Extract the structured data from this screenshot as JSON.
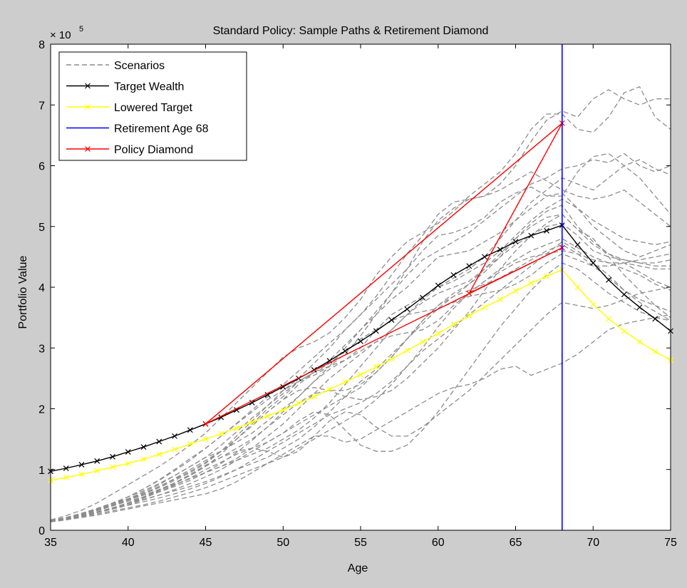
{
  "chart_data": {
    "type": "line",
    "title": "Standard Policy: Sample Paths & Retirement Diamond",
    "xlabel": "Age",
    "ylabel": "Portfolio Value",
    "y_multiplier": "× 10",
    "y_multiplier_exponent": "5",
    "xlim": [
      35,
      75
    ],
    "ylim": [
      0,
      8
    ],
    "xticks": [
      "35",
      "40",
      "45",
      "50",
      "55",
      "60",
      "65",
      "70",
      "75"
    ],
    "yticks": [
      "0",
      "1",
      "2",
      "3",
      "4",
      "5",
      "6",
      "7",
      "8"
    ],
    "retirement_age": 68,
    "legend_position": "top-left",
    "legend": [
      {
        "label": "Scenarios",
        "color": "#8c8c8c",
        "style": "dashed",
        "marker": ""
      },
      {
        "label": "Target Wealth",
        "color": "#000000",
        "style": "solid",
        "marker": "x"
      },
      {
        "label": "Lowered Target",
        "color": "#ffff00",
        "style": "solid",
        "marker": "x"
      },
      {
        "label": "Retirement Age 68",
        "color": "#0000ff",
        "style": "solid",
        "marker": ""
      },
      {
        "label": "Policy Diamond",
        "color": "#ff0000",
        "style": "solid",
        "marker": "x"
      }
    ],
    "target_wealth": {
      "name": "Target Wealth",
      "x": [
        35,
        36,
        37,
        38,
        39,
        40,
        41,
        42,
        43,
        44,
        45,
        46,
        47,
        48,
        49,
        50,
        51,
        52,
        53,
        54,
        55,
        56,
        57,
        58,
        59,
        60,
        61,
        62,
        63,
        64,
        65,
        66,
        67,
        68,
        69,
        70,
        71,
        72,
        73,
        74,
        75
      ],
      "y": [
        0.97,
        1.02,
        1.08,
        1.14,
        1.21,
        1.29,
        1.37,
        1.46,
        1.55,
        1.65,
        1.75,
        1.86,
        1.98,
        2.1,
        2.23,
        2.36,
        2.5,
        2.64,
        2.79,
        2.95,
        3.11,
        3.28,
        3.46,
        3.64,
        3.83,
        4.03,
        4.2,
        4.35,
        4.5,
        4.62,
        4.75,
        4.85,
        4.93,
        5.02,
        4.7,
        4.4,
        4.12,
        3.88,
        3.67,
        3.48,
        3.28
      ]
    },
    "lowered_target": {
      "name": "Lowered Target",
      "x": [
        35,
        36,
        37,
        38,
        39,
        40,
        41,
        42,
        43,
        44,
        45,
        46,
        47,
        48,
        49,
        50,
        51,
        52,
        53,
        54,
        55,
        56,
        57,
        58,
        59,
        60,
        61,
        62,
        63,
        64,
        65,
        66,
        67,
        68,
        69,
        70,
        71,
        72,
        73,
        74,
        75
      ],
      "y": [
        0.82,
        0.87,
        0.92,
        0.98,
        1.04,
        1.1,
        1.17,
        1.25,
        1.33,
        1.42,
        1.5,
        1.59,
        1.68,
        1.78,
        1.88,
        1.98,
        2.09,
        2.2,
        2.32,
        2.44,
        2.56,
        2.69,
        2.82,
        2.96,
        3.1,
        3.24,
        3.39,
        3.53,
        3.67,
        3.8,
        3.94,
        4.07,
        4.18,
        4.29,
        4.0,
        3.72,
        3.48,
        3.28,
        3.1,
        2.94,
        2.8
      ]
    },
    "policy_diamond": {
      "name": "Policy Diamond",
      "x": [
        45,
        68,
        62,
        68,
        45
      ],
      "y": [
        1.75,
        6.7,
        3.9,
        4.65,
        1.75
      ]
    },
    "scenarios_x": [
      35,
      36,
      37,
      38,
      39,
      40,
      41,
      42,
      43,
      44,
      45,
      46,
      47,
      48,
      49,
      50,
      51,
      52,
      53,
      54,
      55,
      56,
      57,
      58,
      59,
      60,
      61,
      62,
      63,
      64,
      65,
      66,
      67,
      68,
      69,
      70,
      71,
      72,
      73,
      74,
      75
    ],
    "scenarios": [
      [
        0.15,
        0.2,
        0.27,
        0.35,
        0.44,
        0.55,
        0.68,
        0.83,
        1.0,
        1.18,
        1.35,
        1.55,
        1.76,
        1.98,
        2.2,
        2.4,
        2.62,
        2.85,
        3.08,
        3.3,
        3.55,
        3.85,
        4.2,
        4.55,
        4.85,
        5.2,
        5.4,
        5.45,
        5.5,
        5.7,
        6.0,
        6.4,
        6.75,
        6.9,
        6.8,
        7.1,
        7.25,
        7.1,
        7.0,
        7.1,
        7.1
      ],
      [
        0.17,
        0.24,
        0.33,
        0.45,
        0.6,
        0.75,
        0.9,
        1.05,
        1.22,
        1.4,
        1.6,
        1.85,
        2.1,
        2.35,
        2.6,
        2.85,
        3.0,
        3.1,
        3.25,
        3.5,
        3.8,
        4.2,
        4.5,
        4.75,
        4.9,
        5.05,
        5.25,
        5.5,
        5.7,
        5.9,
        6.2,
        6.6,
        6.85,
        6.85,
        6.6,
        6.55,
        6.8,
        7.2,
        7.3,
        6.8,
        6.6
      ],
      [
        0.14,
        0.19,
        0.25,
        0.33,
        0.42,
        0.52,
        0.63,
        0.75,
        0.9,
        1.05,
        1.2,
        1.4,
        1.62,
        1.85,
        2.05,
        2.3,
        2.5,
        2.75,
        3.0,
        3.3,
        3.55,
        3.8,
        4.05,
        4.3,
        4.6,
        4.85,
        4.9,
        5.0,
        5.15,
        5.4,
        5.55,
        5.65,
        5.5,
        5.5,
        5.9,
        6.15,
        6.2,
        6.0,
        5.8,
        5.5,
        5.2
      ],
      [
        0.16,
        0.21,
        0.28,
        0.36,
        0.45,
        0.55,
        0.65,
        0.77,
        0.9,
        1.05,
        1.2,
        1.3,
        1.45,
        1.6,
        1.8,
        2.0,
        2.2,
        2.45,
        2.7,
        3.0,
        3.3,
        3.6,
        3.9,
        4.2,
        4.45,
        4.6,
        4.75,
        4.9,
        5.1,
        5.3,
        5.5,
        5.7,
        5.8,
        5.95,
        6.0,
        6.1,
        6.05,
        6.2,
        6.0,
        5.9,
        6.0
      ],
      [
        0.15,
        0.2,
        0.26,
        0.33,
        0.41,
        0.5,
        0.6,
        0.72,
        0.85,
        1.0,
        1.15,
        1.3,
        1.5,
        1.72,
        1.95,
        2.15,
        2.4,
        2.6,
        2.8,
        3.05,
        3.3,
        3.55,
        3.8,
        4.0,
        4.25,
        4.5,
        4.55,
        4.6,
        4.75,
        4.9,
        5.1,
        5.3,
        5.5,
        5.55,
        5.3,
        5.0,
        4.8,
        4.6,
        4.5,
        4.6,
        4.7
      ],
      [
        0.15,
        0.2,
        0.27,
        0.35,
        0.44,
        0.52,
        0.6,
        0.7,
        0.82,
        0.95,
        1.1,
        1.3,
        1.55,
        1.8,
        2.05,
        2.25,
        2.45,
        2.55,
        2.7,
        2.9,
        3.2,
        3.55,
        3.9,
        4.3,
        4.75,
        5.1,
        5.3,
        5.45,
        5.5,
        5.6,
        5.75,
        5.9,
        5.75,
        5.6,
        5.5,
        5.45,
        5.5,
        5.6,
        5.4,
        5.2,
        5.0
      ],
      [
        0.15,
        0.2,
        0.26,
        0.33,
        0.41,
        0.5,
        0.58,
        0.67,
        0.78,
        0.9,
        1.05,
        1.25,
        1.5,
        1.75,
        2.0,
        2.2,
        2.45,
        2.6,
        2.7,
        2.8,
        3.0,
        3.3,
        3.55,
        3.7,
        3.85,
        4.0,
        4.15,
        4.3,
        4.5,
        4.8,
        5.1,
        5.4,
        5.6,
        5.8,
        5.7,
        5.6,
        5.8,
        6.0,
        6.1,
        5.95,
        5.85
      ],
      [
        0.14,
        0.19,
        0.25,
        0.32,
        0.4,
        0.48,
        0.55,
        0.63,
        0.72,
        0.82,
        0.95,
        1.1,
        1.28,
        1.48,
        1.7,
        1.95,
        2.2,
        2.45,
        2.65,
        2.8,
        2.95,
        3.1,
        3.3,
        3.55,
        3.8,
        4.0,
        4.1,
        4.25,
        4.4,
        4.6,
        4.85,
        5.1,
        5.3,
        5.45,
        5.3,
        5.1,
        4.95,
        4.8,
        4.75,
        4.7,
        4.75
      ],
      [
        0.16,
        0.21,
        0.27,
        0.34,
        0.42,
        0.5,
        0.58,
        0.66,
        0.75,
        0.85,
        0.95,
        1.05,
        1.15,
        1.25,
        1.35,
        1.5,
        1.65,
        1.85,
        2.1,
        2.4,
        2.7,
        3.0,
        3.3,
        3.55,
        3.75,
        3.9,
        4.0,
        4.1,
        4.3,
        4.5,
        4.7,
        4.85,
        5.0,
        5.05,
        4.85,
        4.6,
        4.5,
        4.45,
        4.4,
        4.4,
        4.45
      ],
      [
        0.14,
        0.18,
        0.23,
        0.29,
        0.35,
        0.42,
        0.5,
        0.58,
        0.67,
        0.77,
        0.88,
        1.0,
        1.15,
        1.3,
        1.45,
        1.6,
        1.75,
        1.9,
        2.05,
        2.2,
        2.35,
        2.6,
        2.85,
        3.15,
        3.45,
        3.7,
        3.9,
        4.05,
        4.25,
        4.5,
        4.8,
        5.05,
        5.25,
        5.35,
        5.0,
        4.75,
        4.55,
        4.45,
        4.4,
        4.35,
        4.35
      ],
      [
        0.15,
        0.19,
        0.24,
        0.3,
        0.37,
        0.44,
        0.51,
        0.58,
        0.65,
        0.72,
        0.8,
        0.9,
        1.0,
        1.1,
        1.2,
        1.35,
        1.5,
        1.7,
        1.95,
        2.2,
        2.45,
        2.65,
        2.9,
        3.15,
        3.4,
        3.65,
        3.85,
        4.05,
        4.3,
        4.55,
        4.8,
        5.0,
        5.15,
        5.2,
        4.95,
        4.8,
        4.5,
        4.2,
        3.95,
        3.7,
        3.5
      ],
      [
        0.16,
        0.21,
        0.27,
        0.34,
        0.42,
        0.5,
        0.58,
        0.66,
        0.75,
        0.85,
        0.95,
        1.05,
        1.18,
        1.35,
        1.55,
        1.75,
        2.0,
        2.25,
        2.5,
        2.7,
        2.9,
        3.1,
        3.2,
        3.25,
        3.3,
        3.45,
        3.7,
        3.9,
        4.1,
        4.3,
        4.45,
        4.6,
        4.7,
        4.8,
        4.65,
        4.5,
        4.4,
        4.3,
        4.2,
        4.05,
        3.95
      ],
      [
        0.14,
        0.18,
        0.23,
        0.29,
        0.35,
        0.41,
        0.47,
        0.53,
        0.6,
        0.68,
        0.77,
        0.88,
        1.0,
        1.15,
        1.3,
        1.45,
        1.6,
        1.75,
        1.9,
        2.0,
        2.1,
        2.25,
        2.45,
        2.7,
        2.95,
        3.15,
        3.35,
        3.55,
        3.75,
        3.95,
        4.15,
        4.35,
        4.55,
        4.75,
        4.6,
        4.4,
        4.2,
        3.95,
        3.75,
        3.6,
        3.45
      ],
      [
        0.15,
        0.2,
        0.27,
        0.35,
        0.44,
        0.55,
        0.68,
        0.82,
        0.98,
        1.15,
        1.35,
        1.55,
        1.75,
        1.95,
        2.15,
        2.3,
        2.45,
        2.6,
        2.75,
        2.95,
        3.15,
        3.3,
        3.45,
        3.55,
        3.6,
        3.65,
        3.75,
        3.85,
        3.9,
        3.95,
        4.05,
        4.2,
        4.4,
        4.55,
        4.45,
        4.35,
        4.35,
        4.4,
        4.45,
        4.5,
        4.55
      ],
      [
        0.14,
        0.18,
        0.22,
        0.27,
        0.32,
        0.37,
        0.42,
        0.48,
        0.55,
        0.62,
        0.7,
        0.8,
        0.9,
        1.0,
        1.1,
        1.2,
        1.35,
        1.5,
        1.65,
        1.8,
        1.95,
        2.15,
        2.4,
        2.7,
        3.0,
        3.35,
        3.65,
        3.9,
        4.1,
        4.25,
        4.4,
        4.5,
        4.55,
        4.6,
        4.55,
        4.45,
        4.4,
        4.4,
        4.35,
        4.3,
        4.3
      ],
      [
        0.15,
        0.19,
        0.24,
        0.3,
        0.37,
        0.45,
        0.54,
        0.65,
        0.77,
        0.9,
        1.05,
        1.2,
        1.35,
        1.5,
        1.7,
        1.9,
        2.1,
        2.25,
        2.3,
        2.3,
        2.4,
        2.6,
        2.85,
        3.15,
        3.45,
        3.7,
        3.85,
        3.95,
        4.05,
        4.15,
        4.3,
        4.45,
        4.6,
        4.7,
        4.55,
        4.35,
        4.15,
        3.95,
        3.8,
        3.7,
        3.6
      ],
      [
        0.16,
        0.21,
        0.27,
        0.34,
        0.42,
        0.51,
        0.61,
        0.72,
        0.84,
        0.97,
        1.12,
        1.3,
        1.5,
        1.72,
        1.95,
        2.15,
        2.3,
        2.35,
        2.3,
        2.2,
        2.15,
        2.2,
        2.3,
        2.5,
        2.75,
        3.0,
        3.3,
        3.6,
        3.95,
        4.3,
        4.6,
        4.85,
        5.05,
        5.2,
        4.95,
        4.7,
        4.55,
        4.4,
        4.25,
        4.1,
        4.0
      ],
      [
        0.14,
        0.18,
        0.23,
        0.29,
        0.36,
        0.44,
        0.53,
        0.63,
        0.74,
        0.86,
        1.0,
        1.12,
        1.25,
        1.35,
        1.45,
        1.6,
        1.8,
        1.95,
        1.9,
        1.65,
        1.4,
        1.3,
        1.3,
        1.4,
        1.65,
        1.95,
        2.3,
        2.65,
        3.0,
        3.35,
        3.65,
        3.95,
        4.2,
        4.4,
        4.3,
        4.1,
        3.9,
        3.75,
        3.6,
        3.5,
        3.45
      ],
      [
        0.15,
        0.19,
        0.24,
        0.3,
        0.37,
        0.45,
        0.55,
        0.66,
        0.78,
        0.92,
        1.07,
        1.2,
        1.3,
        1.35,
        1.3,
        1.2,
        1.3,
        1.55,
        1.8,
        1.95,
        1.9,
        1.7,
        1.55,
        1.55,
        1.7,
        1.9,
        2.1,
        2.3,
        2.55,
        2.8,
        3.05,
        3.3,
        3.55,
        3.75,
        3.7,
        3.65,
        3.7,
        3.8,
        3.9,
        3.95,
        4.0
      ],
      [
        0.14,
        0.17,
        0.21,
        0.25,
        0.3,
        0.35,
        0.4,
        0.45,
        0.5,
        0.55,
        0.6,
        0.68,
        0.8,
        0.95,
        1.1,
        1.25,
        1.4,
        1.55,
        1.55,
        1.45,
        1.5,
        1.65,
        1.8,
        1.95,
        2.1,
        2.25,
        2.35,
        2.4,
        2.5,
        2.65,
        2.7,
        2.55,
        2.65,
        2.75,
        2.9,
        3.1,
        3.3,
        3.4,
        3.45,
        3.5,
        3.55
      ]
    ]
  }
}
